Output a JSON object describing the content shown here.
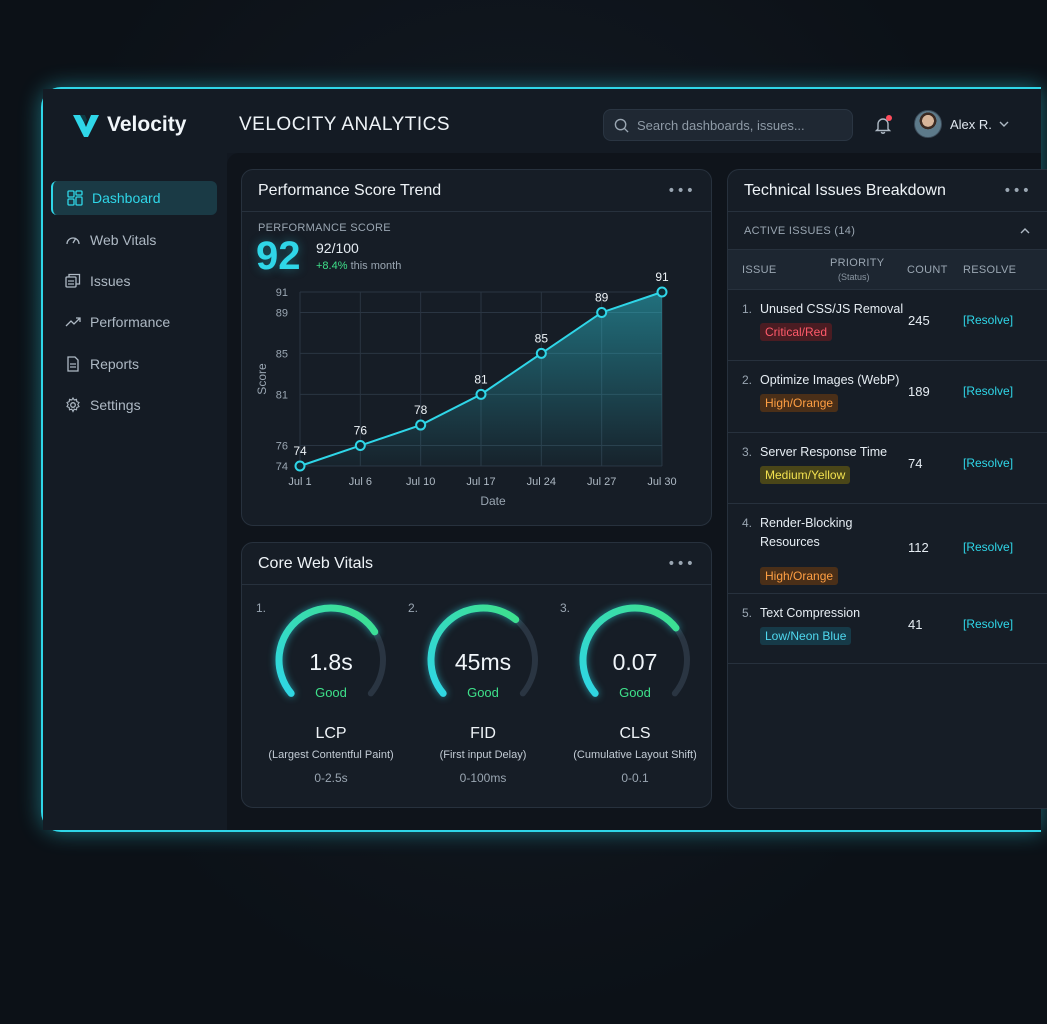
{
  "brand": {
    "name": "Velocity",
    "accent": "#2fd6e8"
  },
  "header": {
    "title": "VELOCITY ANALYTICS",
    "search_placeholder": "Search dashboards, issues...",
    "user_name": "Alex R."
  },
  "sidebar": {
    "items": [
      {
        "label": "Dashboard",
        "icon": "grid-icon",
        "active": true
      },
      {
        "label": "Web Vitals",
        "icon": "gauge-icon",
        "active": false
      },
      {
        "label": "Issues",
        "icon": "stack-icon",
        "active": false
      },
      {
        "label": "Performance",
        "icon": "trend-icon",
        "active": false
      },
      {
        "label": "Reports",
        "icon": "document-icon",
        "active": false
      },
      {
        "label": "Settings",
        "icon": "gear-icon",
        "active": false
      }
    ]
  },
  "performance": {
    "title": "Performance Score Trend",
    "kpi_label": "PERFORMANCE SCORE",
    "score": "92",
    "score_out_of": "92/100",
    "delta": "+8.4%",
    "delta_suffix": "this month"
  },
  "chart_data": {
    "type": "line",
    "x": [
      "Jul 1",
      "Jul 6",
      "Jul 10",
      "Jul 17",
      "Jul 24",
      "Jul 27",
      "Jul 30"
    ],
    "values": [
      74,
      76,
      78,
      81,
      85,
      89,
      91
    ],
    "data_labels": [
      "74",
      "76",
      "78",
      "81",
      "85",
      "89",
      "91"
    ],
    "yticks": [
      "74",
      "76",
      "81",
      "85",
      "89",
      "91"
    ],
    "ytick_values": [
      74,
      76,
      81,
      85,
      89,
      91
    ],
    "xlabel": "Date",
    "ylabel": "Score",
    "ylim": [
      74,
      91
    ],
    "grid": true,
    "area_fill": true,
    "color": "#2fd6e8"
  },
  "vitals": {
    "title": "Core Web Vitals",
    "items": [
      {
        "index": "1.",
        "value": "1.8s",
        "status": "Good",
        "name": "LCP",
        "desc": "(Largest Contentful Paint)",
        "range": "0-2.5s",
        "level": 0.72
      },
      {
        "index": "2.",
        "value": "45ms",
        "status": "Good",
        "name": "FID",
        "desc": "(First input Delay)",
        "range": "0-100ms",
        "level": 0.65
      },
      {
        "index": "3.",
        "value": "0.07",
        "status": "Good",
        "name": "CLS",
        "desc": "(Cumulative Layout Shift)",
        "range": "0-0.1",
        "level": 0.7
      }
    ]
  },
  "issues": {
    "title": "Technical Issues Breakdown",
    "active_label": "ACTIVE ISSUES (14)",
    "columns": {
      "issue": "ISSUE",
      "priority": "PRIORITY",
      "priority_sub": "(Status)",
      "count": "COUNT",
      "resolve": "RESOLVE"
    },
    "rows": [
      {
        "num": "1.",
        "title": "Unused CSS/JS Removal",
        "badge": "Critical/Red",
        "color": "red",
        "count": "245",
        "resolve": "[Resolve]"
      },
      {
        "num": "2.",
        "title": "Optimize Images (WebP)",
        "badge": "High/Orange",
        "color": "orange",
        "count": "189",
        "resolve": "[Resolve]"
      },
      {
        "num": "3.",
        "title": "Server Response Time",
        "badge": "Medium/Yellow",
        "color": "yellow",
        "count": "74",
        "resolve": "[Resolve]"
      },
      {
        "num": "4.",
        "title": "Render-Blocking Resources",
        "badge": "High/Orange",
        "color": "orange",
        "count": "112",
        "resolve": "[Resolve]"
      },
      {
        "num": "5.",
        "title": "Text Compression",
        "badge": "Low/Neon Blue",
        "color": "blue",
        "count": "41",
        "resolve": "[Resolve]"
      }
    ]
  }
}
